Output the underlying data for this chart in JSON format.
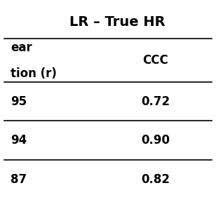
{
  "title": "LR – True HR",
  "col1_header_line1": "ear",
  "col1_header_line2": "tion (r)",
  "col2_header": "CCC",
  "rows": [
    {
      "col1": "95",
      "col2": "0.72"
    },
    {
      "col1": "94",
      "col2": "0.90"
    },
    {
      "col1": "87",
      "col2": "0.82"
    }
  ],
  "bg_color": "#ffffff",
  "text_color": "#000000",
  "line_color": "#000000",
  "title_fontsize": 14,
  "header_fontsize": 12,
  "data_fontsize": 12
}
